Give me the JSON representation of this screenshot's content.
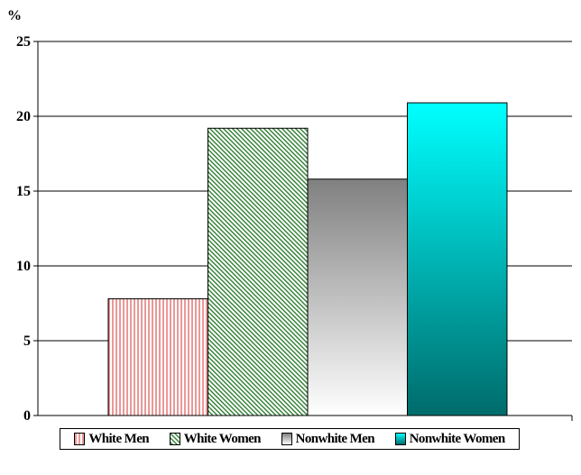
{
  "chart_data": {
    "type": "bar",
    "unit_label": "%",
    "categories": [
      "White Men",
      "White Women",
      "Nonwhite Men",
      "Nonwhite Women"
    ],
    "values": [
      7.8,
      19.2,
      15.8,
      20.9
    ],
    "ylim": [
      0,
      25
    ],
    "yticks": [
      0,
      5,
      10,
      15,
      20,
      25
    ],
    "grid": true,
    "legend_position": "bottom",
    "series_styles": [
      {
        "name": "White Men",
        "fill": "vertical-stripes",
        "color": "#e06060"
      },
      {
        "name": "White Women",
        "fill": "diagonal-stripes",
        "color": "#2e7d32"
      },
      {
        "name": "Nonwhite Men",
        "fill": "gradient",
        "color": "#808080",
        "color2": "#ffffff"
      },
      {
        "name": "Nonwhite Women",
        "fill": "gradient",
        "color": "#00ffff",
        "color2": "#006b6b"
      }
    ]
  },
  "legend": {
    "items": [
      "White Men",
      "White Women",
      "Nonwhite Men",
      "Nonwhite Women"
    ]
  }
}
